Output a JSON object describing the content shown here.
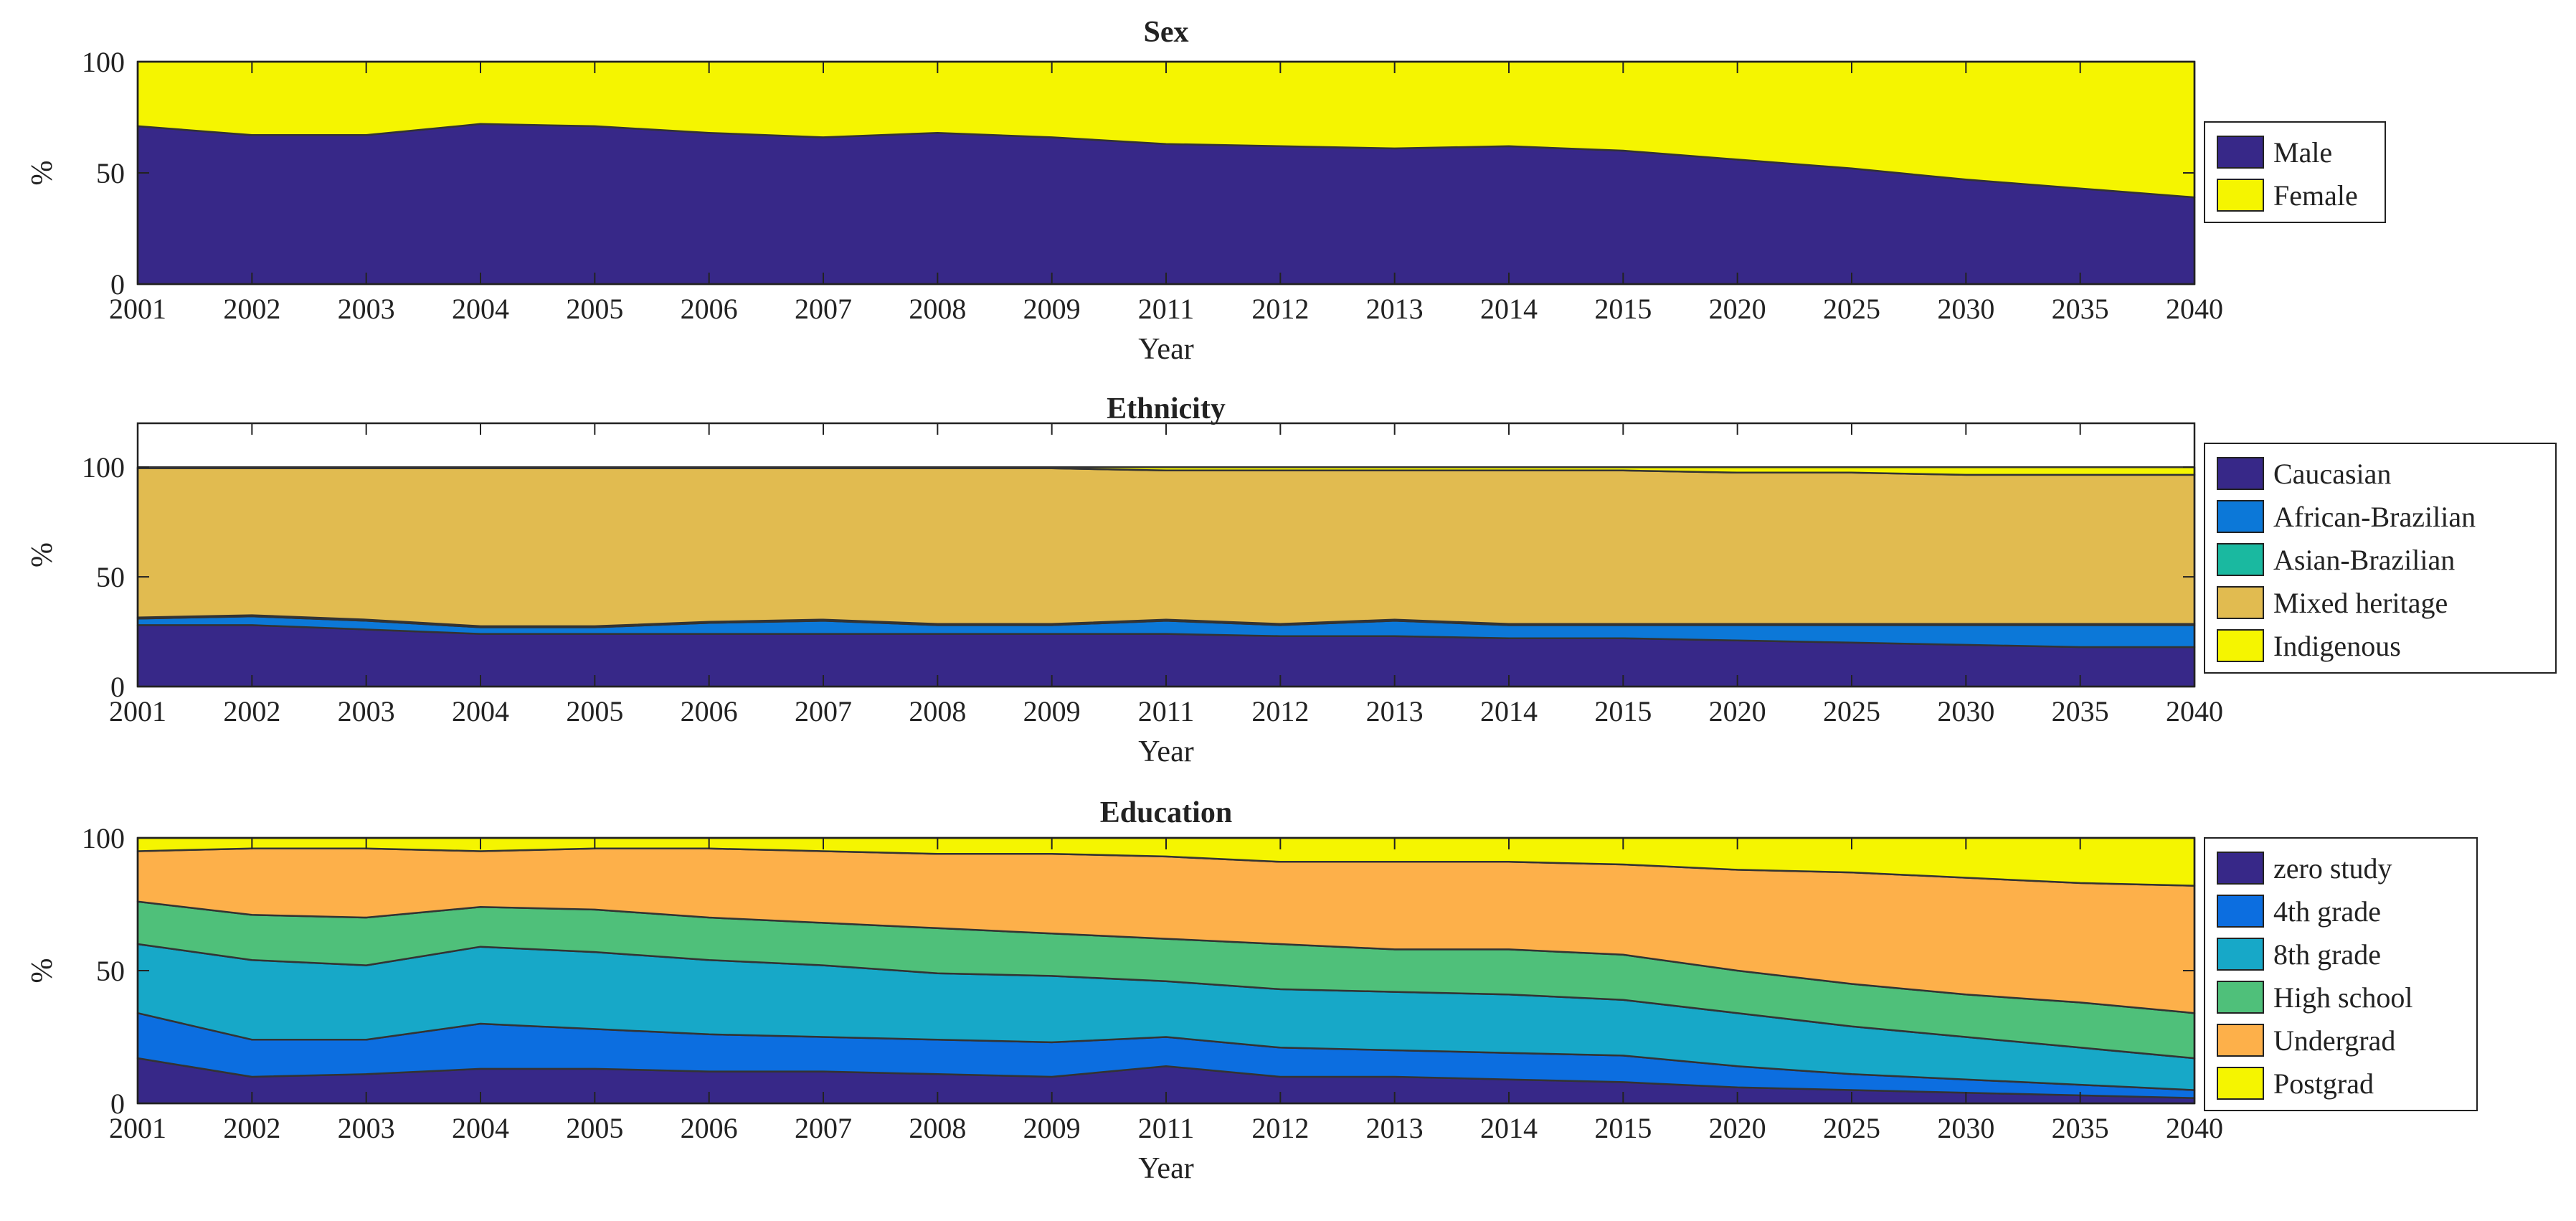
{
  "chart_data": [
    {
      "type": "area",
      "stacked": true,
      "title": "Sex",
      "xlabel": "Year",
      "ylabel": "%",
      "categories": [
        "2001",
        "2002",
        "2003",
        "2004",
        "2005",
        "2006",
        "2007",
        "2008",
        "2009",
        "2011",
        "2012",
        "2013",
        "2014",
        "2015",
        "2020",
        "2025",
        "2030",
        "2035",
        "2040"
      ],
      "ylim": [
        0,
        100
      ],
      "yticks": [
        0,
        50,
        100
      ],
      "series": [
        {
          "name": "Male",
          "color": "#372888",
          "values": [
            71,
            67,
            67,
            72,
            71,
            68,
            66,
            68,
            66,
            63,
            62,
            61,
            62,
            60,
            56,
            52,
            47,
            43,
            39
          ]
        },
        {
          "name": "Female",
          "color": "#f5f500",
          "values": [
            29,
            33,
            33,
            28,
            29,
            32,
            34,
            32,
            34,
            37,
            38,
            39,
            38,
            40,
            44,
            48,
            53,
            57,
            61
          ]
        }
      ]
    },
    {
      "type": "area",
      "stacked": true,
      "title": "Ethnicity",
      "xlabel": "Year",
      "ylabel": "%",
      "categories": [
        "2001",
        "2002",
        "2003",
        "2004",
        "2005",
        "2006",
        "2007",
        "2008",
        "2009",
        "2011",
        "2012",
        "2013",
        "2014",
        "2015",
        "2020",
        "2025",
        "2030",
        "2035",
        "2040"
      ],
      "ylim": [
        0,
        120
      ],
      "yticks": [
        0,
        50,
        100
      ],
      "series": [
        {
          "name": "Caucasian",
          "color": "#372888",
          "values": [
            28,
            28,
            26,
            24,
            24,
            24,
            24,
            24,
            24,
            24,
            23,
            23,
            22,
            22,
            21,
            20,
            19,
            18,
            18
          ]
        },
        {
          "name": "African-Brazilian",
          "color": "#0c78d8",
          "values": [
            3,
            4,
            4,
            3,
            3,
            5,
            6,
            4,
            4,
            6,
            5,
            7,
            6,
            6,
            7,
            8,
            9,
            10,
            10
          ]
        },
        {
          "name": "Asian-Brazilian",
          "color": "#1ab9a0",
          "values": [
            0.5,
            0.5,
            0.5,
            0.5,
            0.5,
            0.5,
            0.5,
            0.5,
            0.5,
            0.5,
            0.5,
            0.5,
            0.5,
            0.5,
            0.5,
            0.5,
            0.5,
            0.5,
            0.5
          ]
        },
        {
          "name": "Mixed heritage",
          "color": "#e1bb50",
          "values": [
            68,
            67,
            69,
            72,
            72,
            70,
            69,
            71,
            71,
            68,
            70,
            68,
            70,
            70,
            69,
            69,
            68,
            68,
            68
          ]
        },
        {
          "name": "Indigenous",
          "color": "#f5f500",
          "values": [
            0.5,
            0.5,
            0.5,
            0.5,
            0.5,
            0.5,
            0.5,
            0.5,
            0.5,
            1.5,
            1.5,
            1.5,
            1.5,
            1.5,
            2.5,
            2.5,
            3.5,
            3.5,
            3.5
          ]
        }
      ]
    },
    {
      "type": "area",
      "stacked": true,
      "title": "Education",
      "xlabel": "Year",
      "ylabel": "%",
      "categories": [
        "2001",
        "2002",
        "2003",
        "2004",
        "2005",
        "2006",
        "2007",
        "2008",
        "2009",
        "2011",
        "2012",
        "2013",
        "2014",
        "2015",
        "2020",
        "2025",
        "2030",
        "2035",
        "2040"
      ],
      "ylim": [
        0,
        100
      ],
      "yticks": [
        0,
        50,
        100
      ],
      "series": [
        {
          "name": "zero study",
          "color": "#372888",
          "values": [
            17,
            10,
            11,
            13,
            13,
            12,
            12,
            11,
            10,
            14,
            10,
            10,
            9,
            8,
            6,
            5,
            4,
            3,
            2
          ]
        },
        {
          "name": "4th grade",
          "color": "#0c6ee0",
          "values": [
            17,
            14,
            13,
            17,
            15,
            14,
            13,
            13,
            13,
            11,
            11,
            10,
            10,
            10,
            8,
            6,
            5,
            4,
            3
          ]
        },
        {
          "name": "8th grade",
          "color": "#17a8c8",
          "values": [
            26,
            30,
            28,
            29,
            29,
            28,
            27,
            25,
            25,
            21,
            22,
            22,
            22,
            21,
            20,
            18,
            16,
            14,
            12
          ]
        },
        {
          "name": "High school",
          "color": "#4fc07a",
          "values": [
            16,
            17,
            18,
            15,
            16,
            16,
            16,
            17,
            16,
            16,
            17,
            16,
            17,
            17,
            16,
            16,
            16,
            17,
            17
          ]
        },
        {
          "name": "Undergrad",
          "color": "#fdb04a",
          "values": [
            19,
            25,
            26,
            21,
            23,
            26,
            27,
            28,
            30,
            31,
            31,
            33,
            33,
            34,
            38,
            42,
            44,
            45,
            48
          ]
        },
        {
          "name": "Postgrad",
          "color": "#f5f500",
          "values": [
            5,
            4,
            4,
            5,
            4,
            4,
            5,
            6,
            6,
            7,
            9,
            9,
            9,
            10,
            12,
            13,
            15,
            17,
            18
          ]
        }
      ]
    }
  ]
}
